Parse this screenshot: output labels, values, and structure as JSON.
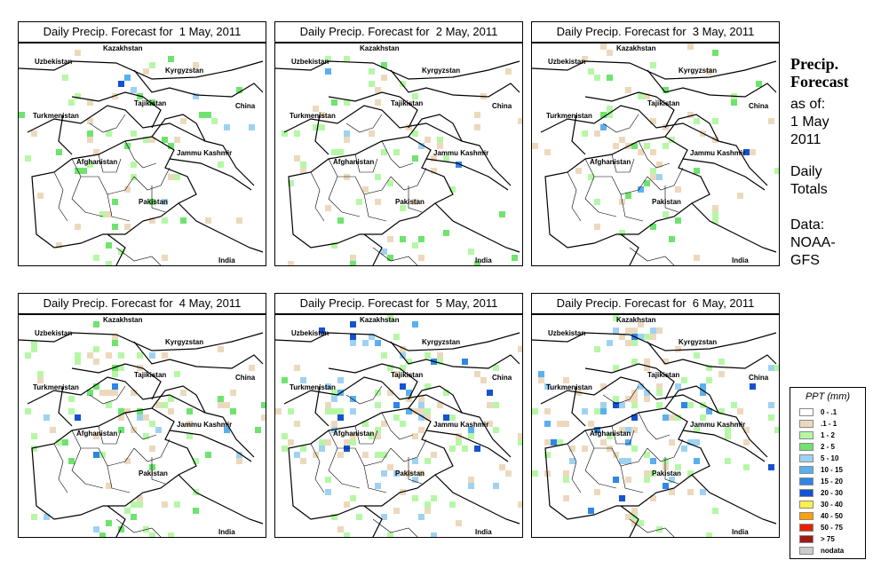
{
  "header": {
    "title_line1": "Precip.",
    "title_line2": "Forecast",
    "asof_line1": "as of:",
    "asof_line2": "1 May",
    "asof_line3": "2011",
    "daily_line1": "Daily",
    "daily_line2": "Totals",
    "data_line1": "Data:",
    "data_line2": "NOAA-",
    "data_line3": "GFS"
  },
  "panels": [
    {
      "title": "Daily Precip. Forecast for  1 May, 2011",
      "intensity": 0.18,
      "spread": 0.35
    },
    {
      "title": "Daily Precip. Forecast for  2 May, 2011",
      "intensity": 0.15,
      "spread": 0.3
    },
    {
      "title": "Daily Precip. Forecast for  3 May, 2011",
      "intensity": 0.16,
      "spread": 0.32
    },
    {
      "title": "Daily Precip. Forecast for  4 May, 2011",
      "intensity": 0.35,
      "spread": 0.45
    },
    {
      "title": "Daily Precip. Forecast for  5 May, 2011",
      "intensity": 0.65,
      "spread": 0.6
    },
    {
      "title": "Daily Precip. Forecast for  6 May, 2011",
      "intensity": 0.75,
      "spread": 0.62
    }
  ],
  "map_labels": {
    "kazakhstan": "Kazakhstan",
    "uzbekistan": "Uzbekistan",
    "kyrgyzstan": "Kyrgyzstan",
    "tajikistan": "Tajikistan",
    "turkmenistan": "Turkmenistan",
    "china": "China",
    "afghanistan": "Afghanistan",
    "jammu_kashmir": "Jammu Kashmir",
    "pakistan": "Pakistan",
    "india": "India"
  },
  "legend": {
    "title": "PPT (mm)",
    "items": [
      {
        "label": "0 - .1",
        "color": "#ffffff"
      },
      {
        "label": ".1 - 1",
        "color": "#ecd9bd"
      },
      {
        "label": "1 - 2",
        "color": "#b6f7a6"
      },
      {
        "label": "2 - 5",
        "color": "#6fe36f"
      },
      {
        "label": "5 - 10",
        "color": "#9fd2f2"
      },
      {
        "label": "10 - 15",
        "color": "#5ab0ee"
      },
      {
        "label": "15 - 20",
        "color": "#2f86e6"
      },
      {
        "label": "20 - 30",
        "color": "#1452d0"
      },
      {
        "label": "30 - 40",
        "color": "#ffef4a"
      },
      {
        "label": "40 - 50",
        "color": "#ffa000"
      },
      {
        "label": "50 - 75",
        "color": "#e82000"
      },
      {
        "label": "> 75",
        "color": "#a01818"
      },
      {
        "label": "nodata",
        "color": "#cccccc"
      }
    ]
  }
}
